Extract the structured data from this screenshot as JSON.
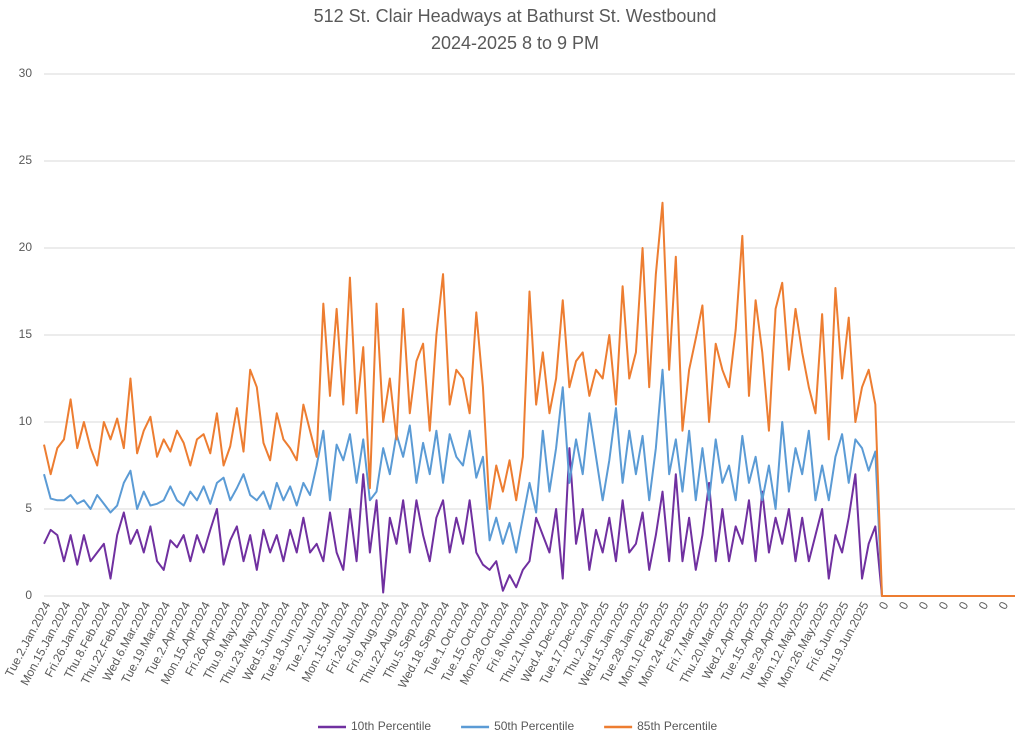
{
  "chart_data": {
    "type": "line",
    "title": "512 St. Clair Headways at Bathurst St. Westbound",
    "subtitle": "2024-2025 8 to 9 PM",
    "categories": [
      "Tue.2.Jan.2024",
      null,
      null,
      "Mon.15.Jan.2024",
      null,
      null,
      "Fri.26.Jan.2024",
      null,
      null,
      "Thu.8.Feb.2024",
      null,
      null,
      "Thu.22.Feb.2024",
      null,
      null,
      "Wed.6.Mar.2024",
      null,
      null,
      "Tue.19.Mar.2024",
      null,
      null,
      "Tue.2.Apr.2024",
      null,
      null,
      "Mon.15.Apr.2024",
      null,
      null,
      "Fri.26.Apr.2024",
      null,
      null,
      "Thu.9.May.2024",
      null,
      null,
      "Thu.23.May.2024",
      null,
      null,
      "Wed.5.Jun.2024",
      null,
      null,
      "Tue.18.Jun.2024",
      null,
      null,
      "Tue.2.Jul.2024",
      null,
      null,
      "Mon.15.Jul.2024",
      null,
      null,
      "Fri.26.Jul.2024",
      null,
      null,
      "Fri.9.Aug.2024",
      null,
      null,
      "Thu.22.Aug.2024",
      null,
      null,
      "Thu.5.Sep.2024",
      null,
      null,
      "Wed.18.Sep.2024",
      null,
      null,
      "Tue.1.Oct.2024",
      null,
      null,
      "Tue.15.Oct.2024",
      null,
      null,
      "Mon.28.Oct.2024",
      null,
      null,
      "Fri.8.Nov.2024",
      null,
      null,
      "Thu.21.Nov.2024",
      null,
      null,
      "Wed.4.Dec.2024",
      null,
      null,
      "Tue.17.Dec.2024",
      null,
      null,
      "Thu.2.Jan.2025",
      null,
      null,
      "Wed.15.Jan.2025",
      null,
      null,
      "Tue.28.Jan.2025",
      null,
      null,
      "Mon.10.Feb.2025",
      null,
      null,
      "Mon.24.Feb.2025",
      null,
      null,
      "Fri.7.Mar.2025",
      null,
      null,
      "Thu.20.Mar.2025",
      null,
      null,
      "Wed.2.Apr.2025",
      null,
      null,
      "Tue.15.Apr.2025",
      null,
      null,
      "Tue.29.Apr.2025",
      null,
      null,
      "Mon.12.May.2025",
      null,
      null,
      "Mon.26.May.2025",
      null,
      null,
      "Fri.6.Jun.2025",
      null,
      null,
      "Thu.19.Jun.2025",
      null,
      null,
      "0",
      null,
      null,
      "0",
      null,
      null,
      "0",
      null,
      null,
      "0",
      null,
      null,
      "0",
      null,
      null,
      "0",
      null,
      null,
      "0",
      null,
      null
    ],
    "series": [
      {
        "name": "10th Percentile",
        "color": "#7030a0",
        "values": [
          3,
          3.8,
          3.5,
          2,
          3.5,
          1.8,
          3.5,
          2,
          2.5,
          3,
          1,
          3.5,
          4.8,
          3,
          3.8,
          2.5,
          4,
          2,
          1.5,
          3.2,
          2.8,
          3.5,
          2,
          3.5,
          2.5,
          3.8,
          5,
          1.8,
          3.2,
          4,
          2,
          3.5,
          1.5,
          3.8,
          2.5,
          3.5,
          2,
          3.8,
          2.5,
          4.5,
          2.5,
          3,
          2,
          4.8,
          2.5,
          1.5,
          5,
          2,
          7,
          2.5,
          5.5,
          0.2,
          4.5,
          3,
          5.5,
          2.5,
          5.5,
          3.5,
          2,
          4.5,
          5.5,
          2.5,
          4.5,
          3,
          5.5,
          2.5,
          1.8,
          1.5,
          2,
          0.3,
          1.2,
          0.5,
          1.5,
          2,
          4.5,
          3.5,
          2.5,
          5,
          1,
          8.5,
          3,
          5,
          1.5,
          3.8,
          2.5,
          4.5,
          2,
          5.5,
          2.5,
          3,
          4.8,
          1.5,
          3.5,
          6,
          2,
          7,
          2,
          4.5,
          1.5,
          3.5,
          6.5,
          2,
          5,
          2,
          4,
          3,
          5.5,
          2,
          6,
          2.5,
          4.5,
          3,
          5,
          2,
          4.5,
          2,
          3.5,
          5,
          1,
          3.5,
          2.5,
          4.5,
          7,
          1,
          3,
          4,
          0,
          0,
          0,
          0,
          0,
          0,
          0,
          0,
          0,
          0,
          0,
          0,
          0,
          0,
          0,
          0,
          0,
          0,
          0,
          0,
          0
        ]
      },
      {
        "name": "50th Percentile",
        "color": "#5b9bd5",
        "values": [
          7,
          5.6,
          5.5,
          5.5,
          5.8,
          5.3,
          5.5,
          5,
          5.8,
          5.3,
          4.8,
          5.2,
          6.5,
          7.2,
          5,
          6,
          5.2,
          5.3,
          5.5,
          6.3,
          5.5,
          5.2,
          6,
          5.5,
          6.3,
          5.3,
          6.5,
          6.8,
          5.5,
          6.2,
          7,
          5.8,
          5.5,
          6,
          5,
          6.5,
          5.5,
          6.3,
          5.2,
          6.5,
          5.8,
          7.5,
          9.5,
          5.5,
          8.7,
          7.8,
          9.3,
          6.5,
          9,
          5.5,
          6,
          8.5,
          7,
          9.3,
          8,
          9.8,
          6.5,
          8.8,
          7,
          9.5,
          6.5,
          9.3,
          8,
          7.5,
          9.5,
          6.8,
          8,
          3.2,
          4.5,
          3,
          4.2,
          2.5,
          4.5,
          6.5,
          4.8,
          9.5,
          6,
          8.5,
          12,
          6.5,
          9,
          7,
          10.5,
          8,
          5.5,
          7.8,
          10.8,
          6.5,
          9.5,
          7,
          9.2,
          5.5,
          8.5,
          13,
          7,
          9,
          6,
          9.5,
          5.5,
          8.5,
          5.5,
          9,
          6.5,
          7.5,
          5.5,
          9.2,
          6.5,
          8,
          5.5,
          7.5,
          5,
          10,
          6,
          8.5,
          7,
          9.5,
          5.5,
          7.5,
          5.5,
          8,
          9.3,
          6.5,
          9,
          8.5,
          7.2,
          8.3,
          0,
          0,
          0,
          0,
          0,
          0,
          0,
          0,
          0,
          0,
          0,
          0,
          0,
          0,
          0,
          0,
          0,
          0,
          0,
          0,
          0
        ]
      },
      {
        "name": "85th Percentile",
        "color": "#ed7d31",
        "values": [
          8.7,
          7,
          8.5,
          9,
          11.3,
          8.5,
          10,
          8.5,
          7.5,
          10,
          9,
          10.2,
          8.5,
          12.5,
          8.2,
          9.5,
          10.3,
          8,
          9,
          8.3,
          9.5,
          8.8,
          7.5,
          9,
          9.3,
          8.2,
          10.5,
          7.5,
          8.6,
          10.8,
          8.3,
          13,
          12,
          8.8,
          7.8,
          10.5,
          9,
          8.5,
          7.8,
          11,
          9.5,
          8,
          16.8,
          11.5,
          16.5,
          11,
          18.3,
          10.5,
          14.3,
          6.2,
          16.8,
          10,
          12.5,
          9,
          16.5,
          10.5,
          13.5,
          14.5,
          9.5,
          15,
          18.5,
          11,
          13,
          12.5,
          10.5,
          16.3,
          12,
          5,
          7.5,
          6,
          7.8,
          5.5,
          8,
          17.5,
          11,
          14,
          10.5,
          12.5,
          17,
          12,
          13.5,
          14,
          11.5,
          13,
          12.5,
          15,
          11,
          17.8,
          12.5,
          14,
          20,
          12,
          18.5,
          22.6,
          13,
          19.5,
          9.5,
          13,
          14.8,
          16.7,
          10,
          14.5,
          13,
          12,
          15.3,
          20.7,
          11.5,
          17,
          14,
          9.5,
          16.5,
          18,
          13,
          16.5,
          14,
          12,
          10.5,
          16.2,
          9,
          17.7,
          12.5,
          16,
          10,
          12,
          13,
          11,
          0,
          0,
          0,
          0,
          0,
          0,
          0,
          0,
          0,
          0,
          0,
          0,
          0,
          0,
          0,
          0,
          0,
          0,
          0,
          0,
          0
        ]
      }
    ],
    "ylim": [
      0,
      30
    ],
    "yticks": [
      0,
      5,
      10,
      15,
      20,
      25,
      30
    ],
    "grid": true,
    "legend": "bottom"
  }
}
